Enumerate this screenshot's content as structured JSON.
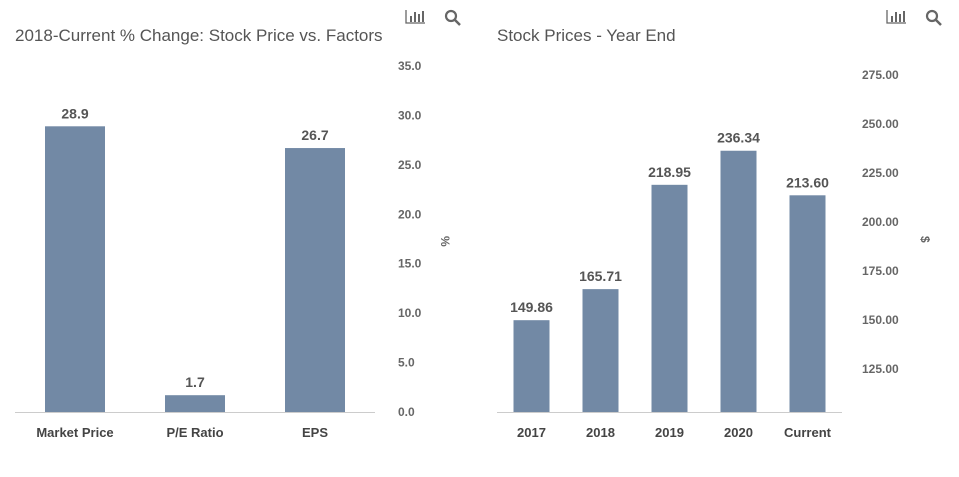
{
  "colors": {
    "bar": "#7289a5",
    "axis": "#cccccc",
    "icon": "#666666"
  },
  "icons": [
    "bar-chart-icon",
    "search-icon"
  ],
  "chart_data": [
    {
      "type": "bar",
      "title": "2018-Current % Change: Stock Price vs. Factors",
      "categories": [
        "Market Price",
        "P/E Ratio",
        "EPS"
      ],
      "values": [
        28.9,
        1.7,
        26.7
      ],
      "data_labels": [
        "28.9",
        "1.7",
        "26.7"
      ],
      "ylabel": "%",
      "ylim": [
        0,
        35
      ],
      "yticks": [
        "0.0",
        "5.0",
        "10.0",
        "15.0",
        "20.0",
        "25.0",
        "30.0",
        "35.0"
      ],
      "ytick_values": [
        0,
        5,
        10,
        15,
        20,
        25,
        30,
        35
      ],
      "y_axis_side": "right",
      "grid": false
    },
    {
      "type": "bar",
      "title": "Stock Prices - Year End",
      "categories": [
        "2017",
        "2018",
        "2019",
        "2020",
        "Current"
      ],
      "values": [
        149.86,
        165.71,
        218.95,
        236.34,
        213.6
      ],
      "data_labels": [
        "149.86",
        "165.71",
        "218.95",
        "236.34",
        "213.60"
      ],
      "ylabel": "$",
      "ylim": [
        103,
        275
      ],
      "yticks": [
        "125.00",
        "150.00",
        "175.00",
        "200.00",
        "225.00",
        "250.00",
        "275.00"
      ],
      "ytick_values": [
        125,
        150,
        175,
        200,
        225,
        250,
        275
      ],
      "y_axis_side": "right",
      "grid": false
    }
  ]
}
